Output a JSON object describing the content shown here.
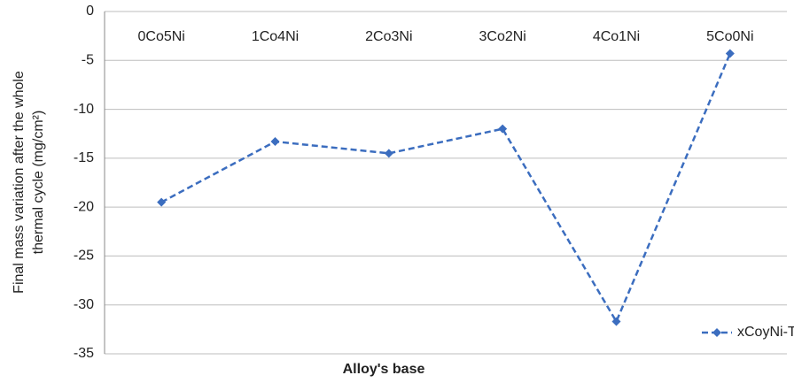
{
  "chart_data": {
    "type": "line",
    "x_label": "Alloy's base",
    "y_label": [
      "Final mass variation after the whole",
      "thermal cycle (mg/cm²)"
    ],
    "categories": [
      "0Co5Ni",
      "1Co4Ni",
      "2Co3Ni",
      "3Co2Ni",
      "4Co1Ni",
      "5Co0Ni"
    ],
    "series": [
      {
        "name": "xCoyNi-Ta",
        "color": "#3b6dbf",
        "values": [
          -19.5,
          -13.3,
          -14.5,
          -12.0,
          -31.7,
          -4.3
        ]
      }
    ],
    "ylim": [
      -35,
      0
    ],
    "yticks": [
      -35,
      -30,
      -25,
      -20,
      -15,
      -10,
      -5,
      0
    ],
    "grid": true,
    "legend": "bottom-right"
  }
}
